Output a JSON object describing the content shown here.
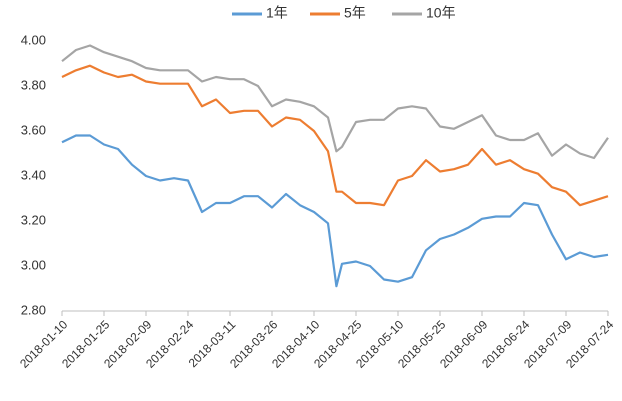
{
  "chart_data": {
    "type": "line",
    "x": [
      "2018-01-10",
      "2018-01-15",
      "2018-01-20",
      "2018-01-25",
      "2018-01-30",
      "2018-02-04",
      "2018-02-09",
      "2018-02-14",
      "2018-02-19",
      "2018-02-24",
      "2018-03-01",
      "2018-03-06",
      "2018-03-11",
      "2018-03-16",
      "2018-03-21",
      "2018-03-26",
      "2018-03-31",
      "2018-04-05",
      "2018-04-10",
      "2018-04-15",
      "2018-04-18",
      "2018-04-20",
      "2018-04-25",
      "2018-04-30",
      "2018-05-05",
      "2018-05-10",
      "2018-05-15",
      "2018-05-20",
      "2018-05-25",
      "2018-05-30",
      "2018-06-04",
      "2018-06-09",
      "2018-06-14",
      "2018-06-19",
      "2018-06-24",
      "2018-06-29",
      "2018-07-04",
      "2018-07-09",
      "2018-07-14",
      "2018-07-19",
      "2018-07-24"
    ],
    "series": [
      {
        "name": "1年",
        "color": "#5b9bd5",
        "values": [
          3.55,
          3.58,
          3.58,
          3.54,
          3.52,
          3.45,
          3.4,
          3.38,
          3.39,
          3.38,
          3.24,
          3.28,
          3.28,
          3.31,
          3.31,
          3.26,
          3.32,
          3.27,
          3.24,
          3.19,
          2.91,
          3.01,
          3.02,
          3.0,
          2.94,
          2.93,
          2.95,
          3.07,
          3.12,
          3.14,
          3.17,
          3.21,
          3.22,
          3.22,
          3.28,
          3.27,
          3.14,
          3.03,
          3.06,
          3.04,
          3.05
        ]
      },
      {
        "name": "5年",
        "color": "#ed7d31",
        "values": [
          3.84,
          3.87,
          3.89,
          3.86,
          3.84,
          3.85,
          3.82,
          3.81,
          3.81,
          3.81,
          3.71,
          3.74,
          3.68,
          3.69,
          3.69,
          3.62,
          3.66,
          3.65,
          3.6,
          3.51,
          3.33,
          3.33,
          3.28,
          3.28,
          3.27,
          3.38,
          3.4,
          3.47,
          3.42,
          3.43,
          3.45,
          3.52,
          3.45,
          3.47,
          3.43,
          3.41,
          3.35,
          3.33,
          3.27,
          3.29,
          3.31
        ]
      },
      {
        "name": "10年",
        "color": "#a5a5a5",
        "values": [
          3.91,
          3.96,
          3.98,
          3.95,
          3.93,
          3.91,
          3.88,
          3.87,
          3.87,
          3.87,
          3.82,
          3.84,
          3.83,
          3.83,
          3.8,
          3.71,
          3.74,
          3.73,
          3.71,
          3.66,
          3.51,
          3.53,
          3.64,
          3.65,
          3.65,
          3.7,
          3.71,
          3.7,
          3.62,
          3.61,
          3.64,
          3.67,
          3.58,
          3.56,
          3.56,
          3.59,
          3.49,
          3.54,
          3.5,
          3.48,
          3.57
        ]
      }
    ],
    "xlim": [
      "2018-01-10",
      "2018-07-24"
    ],
    "xticks": [
      "2018-01-10",
      "2018-01-25",
      "2018-02-09",
      "2018-02-24",
      "2018-03-11",
      "2018-03-26",
      "2018-04-10",
      "2018-04-25",
      "2018-05-10",
      "2018-05-25",
      "2018-06-09",
      "2018-06-24",
      "2018-07-09",
      "2018-07-24"
    ],
    "ylim": [
      2.8,
      4.0
    ],
    "yticks": [
      {
        "value": 2.8,
        "label": "2.80"
      },
      {
        "value": 3.0,
        "label": "3.00"
      },
      {
        "value": 3.2,
        "label": "3.20"
      },
      {
        "value": 3.4,
        "label": "3.40"
      },
      {
        "value": 3.6,
        "label": "3.60"
      },
      {
        "value": 3.8,
        "label": "3.80"
      },
      {
        "value": 4.0,
        "label": "4.00"
      }
    ],
    "grid": false,
    "legend": "top"
  }
}
